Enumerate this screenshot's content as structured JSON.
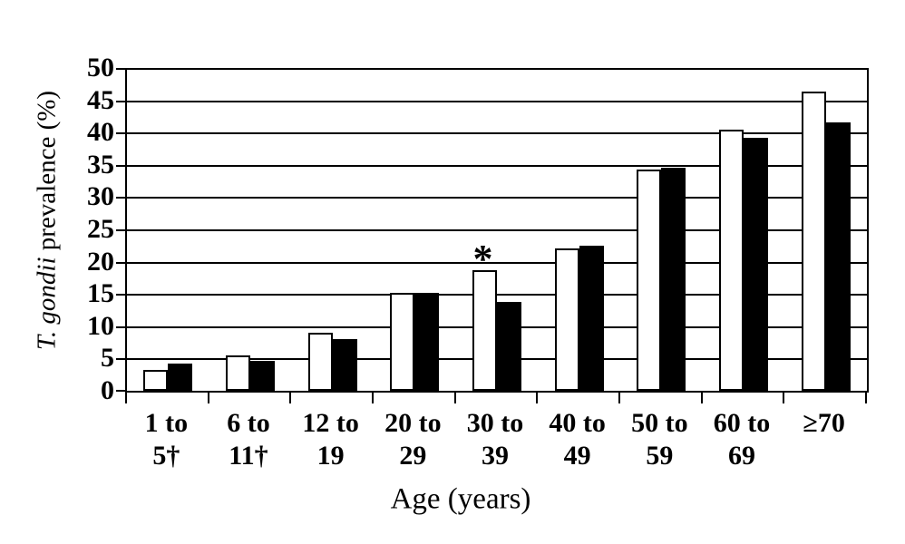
{
  "figure": {
    "background": "#ffffff",
    "ink_color": "#000000"
  },
  "chart_data": {
    "type": "bar",
    "title": "",
    "xlabel": "Age (years)",
    "ylabel": "T. gondii prevalence (%)",
    "ylabel_italic": "T. gondii",
    "ylabel_rest": " prevalence (%)",
    "ylim": [
      0,
      50
    ],
    "ytick_step": 5,
    "ytick_labels": [
      "0",
      "5",
      "10",
      "15",
      "20",
      "25",
      "30",
      "35",
      "40",
      "45",
      "50"
    ],
    "grid": "horizontal",
    "legend": "none",
    "categories": [
      "1 to 5†",
      "6 to 11†",
      "12 to 19",
      "20 to 29",
      "30 to 39",
      "40 to 49",
      "50 to 59",
      "60 to 69",
      "≥70"
    ],
    "category_lines": [
      [
        "1 to",
        "5†"
      ],
      [
        "6 to",
        "11†"
      ],
      [
        "12 to",
        "19"
      ],
      [
        "20 to",
        "29"
      ],
      [
        "30 to",
        "39"
      ],
      [
        "40 to",
        "49"
      ],
      [
        "50 to",
        "59"
      ],
      [
        "60 to",
        "69"
      ],
      [
        "≥70",
        ""
      ]
    ],
    "series": [
      {
        "name": "white",
        "fill": "#ffffff",
        "values": [
          3.2,
          5.5,
          9.0,
          15.2,
          18.7,
          22.0,
          34.3,
          40.4,
          46.3
        ]
      },
      {
        "name": "black",
        "fill": "#000000",
        "values": [
          4.2,
          4.6,
          8.0,
          15.2,
          13.7,
          22.5,
          34.5,
          39.2,
          41.6
        ]
      }
    ],
    "annotations": [
      {
        "text": "*",
        "series": "white",
        "category_index": 4
      }
    ]
  }
}
